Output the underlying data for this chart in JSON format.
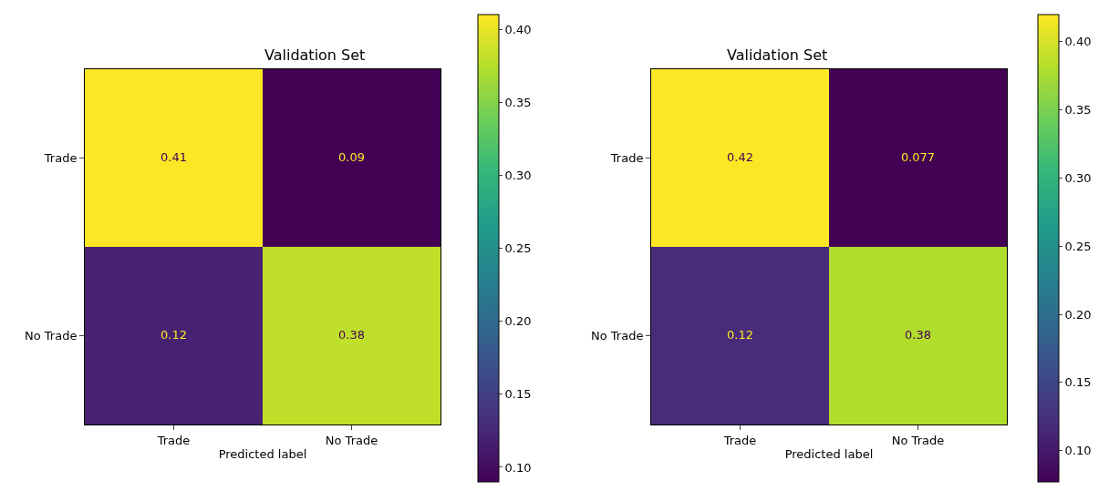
{
  "chart_data": [
    {
      "type": "heatmap",
      "title": "Validation Set",
      "xlabel": "Predicted label",
      "categories": [
        "Trade",
        "No Trade"
      ],
      "y_categories": [
        "Trade",
        "No Trade"
      ],
      "cells": [
        [
          0.41,
          0.09
        ],
        [
          0.12,
          0.38
        ]
      ],
      "data_labels": true,
      "clim": [
        0.09,
        0.41
      ],
      "cticks": [
        {
          "value": 0.1,
          "label": "0.10"
        },
        {
          "value": 0.15,
          "label": "0.15"
        },
        {
          "value": 0.2,
          "label": "0.20"
        },
        {
          "value": 0.25,
          "label": "0.25"
        },
        {
          "value": 0.3,
          "label": "0.30"
        },
        {
          "value": 0.35,
          "label": "0.35"
        },
        {
          "value": 0.4,
          "label": "0.40"
        }
      ]
    },
    {
      "type": "heatmap",
      "title": "Validation Set",
      "xlabel": "Predicted label",
      "categories": [
        "Trade",
        "No Trade"
      ],
      "y_categories": [
        "Trade",
        "No Trade"
      ],
      "cells": [
        [
          0.42,
          0.077
        ],
        [
          0.12,
          0.38
        ]
      ],
      "data_labels": true,
      "clim": [
        0.077,
        0.42
      ],
      "cticks": [
        {
          "value": 0.1,
          "label": "0.10"
        },
        {
          "value": 0.15,
          "label": "0.15"
        },
        {
          "value": 0.2,
          "label": "0.20"
        },
        {
          "value": 0.25,
          "label": "0.25"
        },
        {
          "value": 0.3,
          "label": "0.30"
        },
        {
          "value": 0.35,
          "label": "0.35"
        },
        {
          "value": 0.4,
          "label": "0.40"
        }
      ]
    }
  ]
}
